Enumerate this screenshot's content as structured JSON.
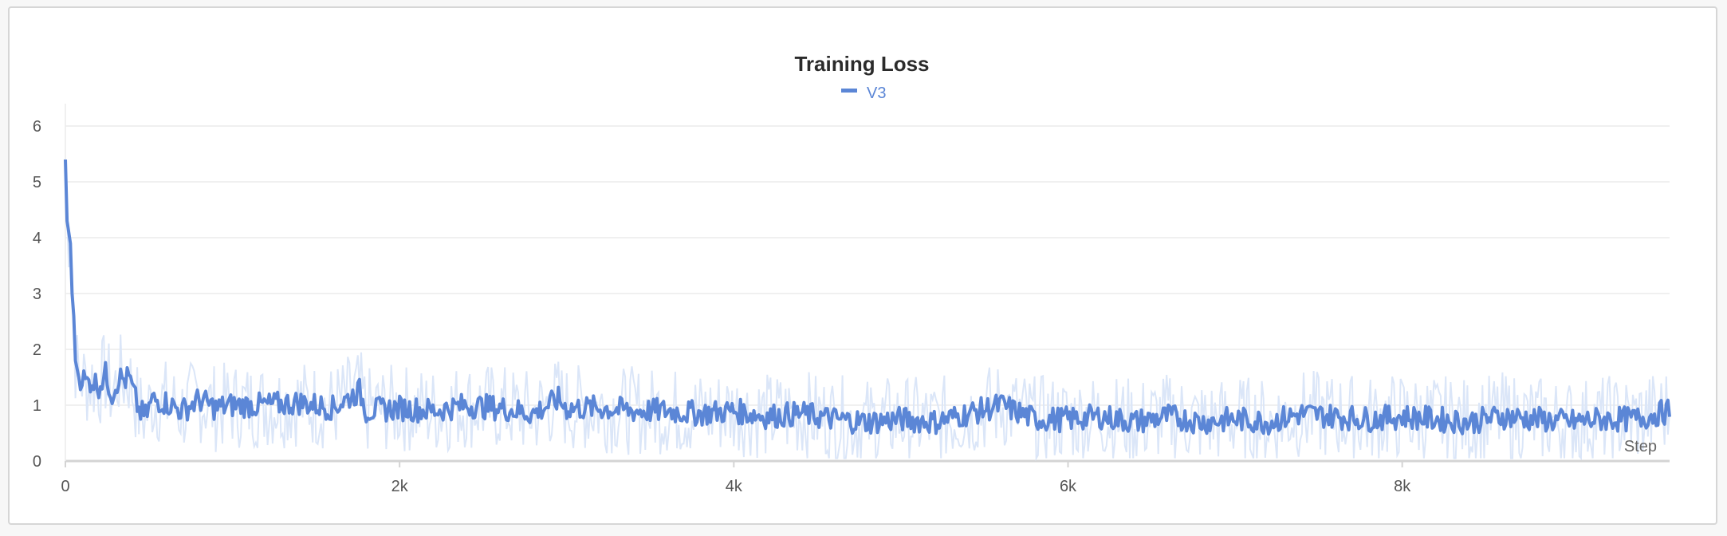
{
  "chart_data": {
    "type": "line",
    "title": "Training Loss",
    "xlabel": "Step",
    "ylabel": "",
    "xlim": [
      0,
      9600
    ],
    "ylim": [
      0,
      6.4
    ],
    "x_ticks": [
      0,
      2000,
      4000,
      6000,
      8000
    ],
    "x_tick_labels": [
      "0",
      "2k",
      "4k",
      "6k",
      "8k"
    ],
    "y_ticks": [
      0,
      1,
      2,
      3,
      4,
      5,
      6
    ],
    "y_tick_labels": [
      "0",
      "1",
      "2",
      "3",
      "4",
      "5",
      "6"
    ],
    "grid": true,
    "legend_position": "top-center",
    "colors": {
      "series": "#5b86d6",
      "raw": "#dbe6f8",
      "grid": "#ececec",
      "axis": "#d4d4d4"
    },
    "series": [
      {
        "name": "V3",
        "x": [
          0,
          10,
          20,
          30,
          40,
          50,
          60,
          80,
          100,
          130,
          160,
          200,
          240,
          280,
          320,
          360,
          380,
          400,
          440,
          480,
          520,
          600,
          700,
          800,
          900,
          1000,
          1200,
          1400,
          1600,
          1760,
          1800,
          2000,
          2200,
          2400,
          2600,
          2800,
          2950,
          3000,
          3200,
          3400,
          3600,
          3800,
          4000,
          4200,
          4400,
          4600,
          4800,
          5000,
          5200,
          5400,
          5600,
          5800,
          6000,
          6200,
          6400,
          6600,
          6800,
          7000,
          7200,
          7400,
          7600,
          7800,
          8000,
          8200,
          8400,
          8600,
          8800,
          9000,
          9200,
          9400,
          9600
        ],
        "values": [
          5.4,
          4.3,
          4.1,
          3.9,
          3.0,
          2.6,
          1.8,
          1.5,
          1.5,
          1.4,
          1.45,
          1.35,
          1.55,
          1.2,
          1.5,
          1.45,
          1.5,
          1.3,
          0.9,
          0.8,
          1.1,
          1.05,
          0.9,
          1.1,
          0.95,
          1.0,
          1.0,
          1.05,
          0.95,
          1.25,
          0.9,
          0.95,
          0.9,
          1.0,
          0.95,
          0.85,
          1.1,
          0.95,
          0.95,
          0.9,
          0.9,
          0.85,
          0.9,
          0.8,
          0.85,
          0.75,
          0.7,
          0.75,
          0.7,
          0.85,
          1.0,
          0.75,
          0.75,
          0.8,
          0.7,
          0.8,
          0.7,
          0.75,
          0.7,
          0.85,
          0.8,
          0.75,
          0.8,
          0.75,
          0.7,
          0.8,
          0.75,
          0.7,
          0.75,
          0.75,
          0.9
        ]
      }
    ]
  }
}
